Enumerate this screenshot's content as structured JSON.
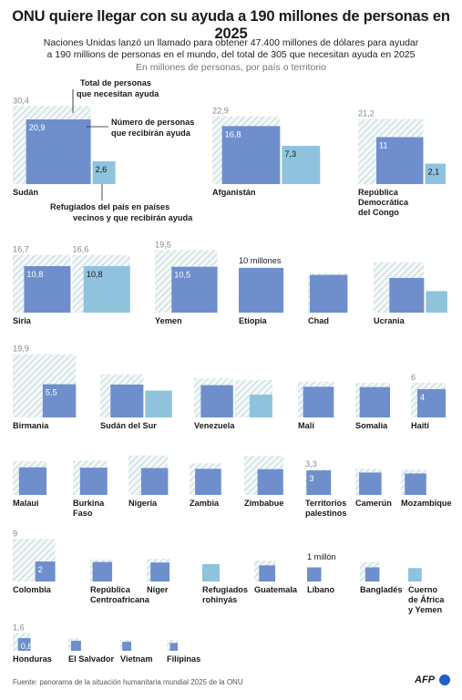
{
  "title": "ONU quiere llegar con su ayuda a 190 millones de personas en 2025",
  "subtitle_line1": "Naciones Unidas lanzó un llamado para obtener 47.400 millones de dólares para ayudar",
  "subtitle_line2": "a 190 millions de personas en el mundo, del total de 305 que necesitan ayuda en 2025",
  "units_note": "En millones de personas, por país o territorio",
  "source": "Fuente: panorama de la situación humanitaria mundial 2025 de la ONU",
  "logo_text": "AFP",
  "colors": {
    "target": "#6e8fcc",
    "refugees": "#8fc3dd",
    "need_hatch": "#b9cfd6",
    "hatch_bg": "#f2f7f8"
  },
  "annotations": {
    "need": [
      "Total de personas",
      "que necesitan ayuda"
    ],
    "target": [
      "Número de personas",
      "que recibirán ayuda"
    ],
    "refugees": [
      "Refugiados del país en países",
      "vecinos y que recibirán ayuda"
    ],
    "ethiopia": "10 millones",
    "lebanon": "1 millón"
  },
  "chart_data": {
    "type": "bar",
    "description_scale": "Area-proportional squares",
    "series": [
      {
        "name": "Total de personas que necesitan ayuda"
      },
      {
        "name": "Número de personas que recibirán ayuda"
      },
      {
        "name": "Refugiados del país en países vecinos y que recibirán ayuda"
      }
    ],
    "countries": [
      {
        "name": [
          "Sudán"
        ],
        "need": 30.4,
        "target": 20.9,
        "refugees": 2.6,
        "need_label": "30,4",
        "target_label": "20,9",
        "refugees_label": "2,6"
      },
      {
        "name": [
          "Afganistán"
        ],
        "need": 22.9,
        "target": 16.8,
        "refugees": 7.3,
        "need_label": "22,9",
        "target_label": "16,8",
        "refugees_label": "7,3"
      },
      {
        "name": [
          "República",
          "Democrática",
          "del Congo"
        ],
        "need": 21.2,
        "target": 11,
        "refugees": 2.1,
        "need_label": "21,2",
        "target_label": "11",
        "refugees_label": "2,1"
      },
      {
        "name": [
          "Siria"
        ],
        "need": 16.7,
        "target": 10.8,
        "refugees": 10.8,
        "refugees_need": 16.6,
        "need_label": "16,7",
        "target_label": "10,8",
        "refugees_label": "10,8",
        "refugees_need_label": "16,6"
      },
      {
        "name": [
          "Yemen"
        ],
        "need": 19.5,
        "target": 10.5,
        "need_label": "19,5",
        "target_label": "10,5"
      },
      {
        "name": [
          "Etiopía"
        ],
        "target": 10
      },
      {
        "name": [
          "Chad"
        ],
        "need": 7.8,
        "target": 7.1
      },
      {
        "name": [
          "Ucrania"
        ],
        "need": 12.7,
        "target": 6,
        "refugees": 2.3
      },
      {
        "name": [
          "Birmania"
        ],
        "need": 19.9,
        "target": 5.5,
        "need_label": "19,9",
        "target_label": "5,5"
      },
      {
        "name": [
          "Sudán del Sur"
        ],
        "need": 9.3,
        "target": 5.4,
        "refugees": 3.6
      },
      {
        "name": [
          "Venezuela"
        ],
        "need": 7.6,
        "target": 5.2,
        "refugees_need": 7.0,
        "refugees": 2.6
      },
      {
        "name": [
          "Malí"
        ],
        "need": 6.4,
        "target": 4.7
      },
      {
        "name": [
          "Somalia"
        ],
        "need": 6.0,
        "target": 4.6
      },
      {
        "name": [
          "Haití"
        ],
        "need": 6,
        "target": 4,
        "need_label": "6",
        "target_label": "4"
      },
      {
        "name": [
          "Malaui"
        ],
        "need": 5.7,
        "target": 3.8
      },
      {
        "name": [
          "Burkina",
          "Faso"
        ],
        "need": 5.9,
        "target": 3.7
      },
      {
        "name": [
          "Nigeria"
        ],
        "need": 7.8,
        "target": 3.6
      },
      {
        "name": [
          "Zambia"
        ],
        "need": 5.0,
        "target": 3.4
      },
      {
        "name": [
          "Zimbabue"
        ],
        "need": 7.6,
        "target": 3.3
      },
      {
        "name": [
          "Territorios",
          "palestinos"
        ],
        "need": 3.3,
        "target": 3,
        "need_label": "3,3",
        "target_label": "3"
      },
      {
        "name": [
          "Camerún"
        ],
        "need": 3.4,
        "target": 2.5
      },
      {
        "name": [
          "Mozambique"
        ],
        "need": 3.2,
        "target": 2.3
      },
      {
        "name": [
          "Colombia"
        ],
        "need": 9,
        "target": 2,
        "need_label": "9",
        "target_label": "2"
      },
      {
        "name": [
          "República",
          "Centroafricana"
        ],
        "need": 2.4,
        "target": 1.9
      },
      {
        "name": [
          "Níger"
        ],
        "need": 2.6,
        "target": 1.8
      },
      {
        "name": [
          "Refugiados",
          "rohinyás"
        ],
        "refugees": 1.5
      },
      {
        "name": [
          "Guatemala"
        ],
        "need": 2.2,
        "target": 1.3
      },
      {
        "name": [
          "Líbano"
        ],
        "target": 1
      },
      {
        "name": [
          "Bangladés"
        ],
        "need": 1.9,
        "target": 1.0
      },
      {
        "name": [
          "Cuerno",
          "de África",
          "y Yemen"
        ],
        "refugees": 0.9
      },
      {
        "name": [
          "Honduras"
        ],
        "need": 1.6,
        "target": 0.8,
        "need_label": "1,6",
        "target_label": "0,8"
      },
      {
        "name": [
          "El Salvador"
        ],
        "need": 0.8,
        "target": 0.5
      },
      {
        "name": [
          "Vietnam"
        ],
        "need": 0.6,
        "target": 0.4
      },
      {
        "name": [
          "Filipinas"
        ],
        "need": 0.6,
        "target": 0.3
      }
    ]
  }
}
